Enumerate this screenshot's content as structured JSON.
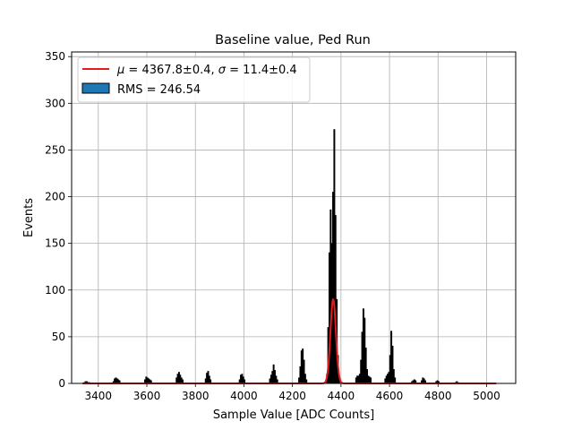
{
  "chart_data": {
    "type": "histogram",
    "title": "Baseline value, Ped Run",
    "xlabel": "Sample Value [ADC Counts]",
    "ylabel": "Events",
    "xlim": [
      3290,
      5120
    ],
    "ylim": [
      0,
      355
    ],
    "xticks": [
      3400,
      3600,
      3800,
      4000,
      4200,
      4400,
      4600,
      4800,
      5000
    ],
    "yticks": [
      0,
      50,
      100,
      150,
      200,
      250,
      300,
      350
    ],
    "grid": true,
    "legend_position": "top-left",
    "histogram": {
      "name": "RMS = 246.54",
      "color": "#1f77b4",
      "edge_color": "#000000",
      "bins": [
        [
          3340,
          1
        ],
        [
          3345,
          2
        ],
        [
          3350,
          2
        ],
        [
          3355,
          1
        ],
        [
          3360,
          1
        ],
        [
          3460,
          2
        ],
        [
          3465,
          5
        ],
        [
          3470,
          6
        ],
        [
          3475,
          5
        ],
        [
          3480,
          4
        ],
        [
          3485,
          3
        ],
        [
          3590,
          4
        ],
        [
          3595,
          7
        ],
        [
          3600,
          6
        ],
        [
          3605,
          5
        ],
        [
          3610,
          4
        ],
        [
          3615,
          3
        ],
        [
          3720,
          6
        ],
        [
          3725,
          10
        ],
        [
          3730,
          12
        ],
        [
          3735,
          9
        ],
        [
          3740,
          6
        ],
        [
          3745,
          4
        ],
        [
          3840,
          5
        ],
        [
          3845,
          11
        ],
        [
          3850,
          13
        ],
        [
          3855,
          8
        ],
        [
          3860,
          4
        ],
        [
          3980,
          4
        ],
        [
          3985,
          9
        ],
        [
          3990,
          10
        ],
        [
          3995,
          7
        ],
        [
          4000,
          4
        ],
        [
          4105,
          5
        ],
        [
          4110,
          9
        ],
        [
          4115,
          13
        ],
        [
          4120,
          20
        ],
        [
          4125,
          14
        ],
        [
          4130,
          8
        ],
        [
          4135,
          4
        ],
        [
          4225,
          6
        ],
        [
          4230,
          18
        ],
        [
          4235,
          35
        ],
        [
          4240,
          37
        ],
        [
          4245,
          25
        ],
        [
          4250,
          10
        ],
        [
          4255,
          4
        ],
        [
          4340,
          10
        ],
        [
          4345,
          60
        ],
        [
          4350,
          140
        ],
        [
          4355,
          186
        ],
        [
          4360,
          150
        ],
        [
          4365,
          205
        ],
        [
          4370,
          272
        ],
        [
          4375,
          180
        ],
        [
          4380,
          90
        ],
        [
          4385,
          30
        ],
        [
          4390,
          8
        ],
        [
          4460,
          6
        ],
        [
          4465,
          8
        ],
        [
          4470,
          8
        ],
        [
          4475,
          10
        ],
        [
          4480,
          25
        ],
        [
          4485,
          55
        ],
        [
          4490,
          80
        ],
        [
          4495,
          70
        ],
        [
          4500,
          38
        ],
        [
          4505,
          15
        ],
        [
          4510,
          8
        ],
        [
          4515,
          7
        ],
        [
          4520,
          6
        ],
        [
          4580,
          5
        ],
        [
          4585,
          8
        ],
        [
          4590,
          10
        ],
        [
          4595,
          12
        ],
        [
          4600,
          30
        ],
        [
          4605,
          56
        ],
        [
          4610,
          40
        ],
        [
          4615,
          15
        ],
        [
          4620,
          6
        ],
        [
          4690,
          2
        ],
        [
          4695,
          3
        ],
        [
          4700,
          4
        ],
        [
          4705,
          3
        ],
        [
          4730,
          3
        ],
        [
          4735,
          6
        ],
        [
          4740,
          5
        ],
        [
          4745,
          3
        ],
        [
          4790,
          2
        ],
        [
          4795,
          3
        ],
        [
          4800,
          2
        ],
        [
          4870,
          1
        ],
        [
          4875,
          2
        ],
        [
          4880,
          1
        ]
      ]
    },
    "fit": {
      "type": "gaussian",
      "name": "$\\mu = 4367.8{\\pm}0.4$, $\\sigma = 11.4{\\pm}0.4$",
      "color": "#e41a1c",
      "mu": 4367.8,
      "sigma": 11.4,
      "amplitude": 90,
      "x_range": [
        3335,
        5040
      ]
    }
  },
  "legend": {
    "fit_label": {
      "mu_symbol": "μ",
      "mu_value": " = 4367.8±0.4, ",
      "sigma_symbol": "σ",
      "sigma_value": " = 11.4±0.4"
    },
    "hist_label": "RMS = 246.54"
  }
}
